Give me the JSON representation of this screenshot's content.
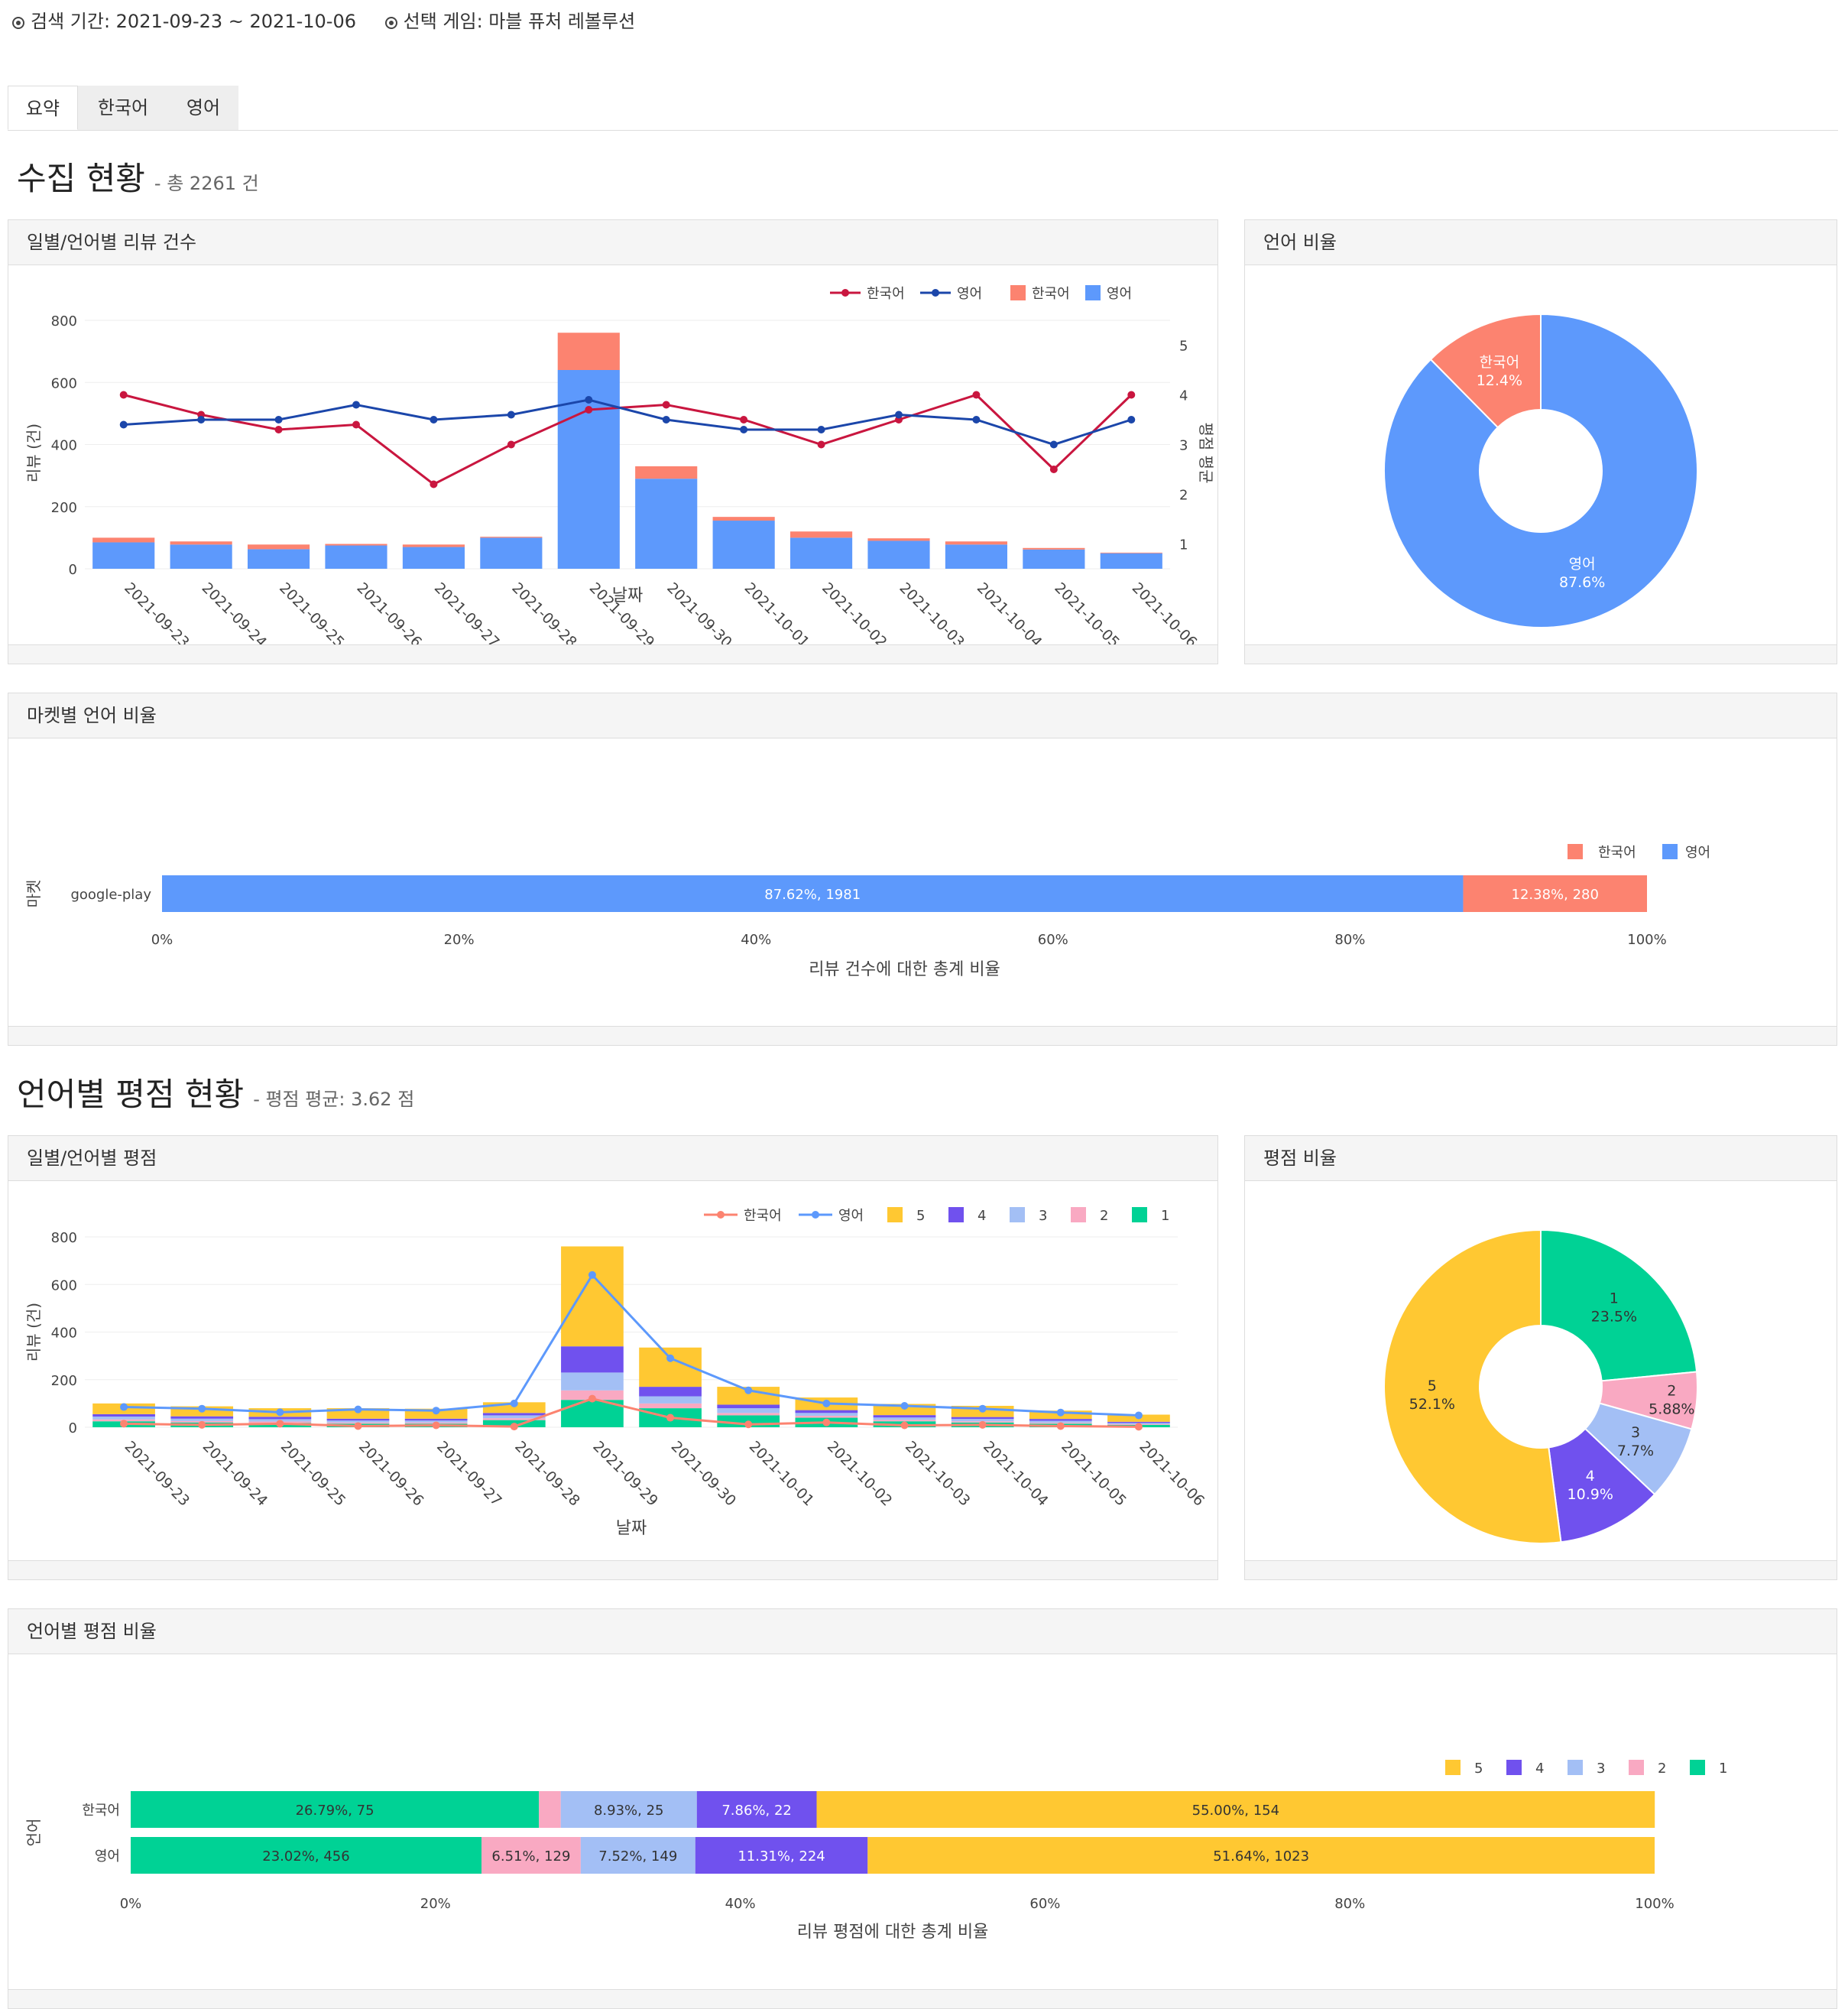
{
  "header": {
    "search_period": "검색 기간: 2021-09-23 ~ 2021-10-06",
    "selected_game": "선택 게임: 마블 퓨처 레볼루션"
  },
  "tabs": [
    {
      "label": "요약"
    },
    {
      "label": "한국어"
    },
    {
      "label": "영어"
    }
  ],
  "section1": {
    "title": "수집 현황",
    "subtitle": "- 총 2261 건"
  },
  "section2": {
    "title": "언어별 평점 현황",
    "subtitle": "- 평점 평균: 3.62 점"
  },
  "panels": {
    "daily_reviews": "일별/언어별 리뷰 건수",
    "language_ratio": "언어 비율",
    "market_ratio": "마켓별 언어 비율",
    "daily_ratings": "일별/언어별 평점",
    "rating_ratio": "평점 비율",
    "lang_rating_ratio": "언어별 평점 비율"
  },
  "colors": {
    "ko_bar": "#FC8370",
    "en_bar": "#5D99FC",
    "ko_line": "#C9163F",
    "en_line": "#1B46AA",
    "r5": "#FFC832",
    "r4": "#7051EE",
    "r3": "#A3BFF5",
    "r2": "#F9A9C2",
    "r1": "#00D295"
  },
  "chart_data": [
    {
      "type": "bar",
      "title": "",
      "xlabel": "날짜",
      "ylabel": "리뷰 (건)",
      "y2label": "평점 평균",
      "ylim": [
        0,
        800
      ],
      "y2lim": [
        0.5,
        5.5
      ],
      "legend_position": "top-right",
      "categories": [
        "2021-09-23",
        "2021-09-24",
        "2021-09-25",
        "2021-09-26",
        "2021-09-27",
        "2021-09-28",
        "2021-09-29",
        "2021-09-30",
        "2021-10-01",
        "2021-10-02",
        "2021-10-03",
        "2021-10-04",
        "2021-10-05",
        "2021-10-06"
      ],
      "series": [
        {
          "name": "한국어",
          "kind": "line",
          "axis": "y2",
          "values": [
            4.0,
            3.6,
            3.3,
            3.4,
            2.2,
            3.0,
            3.7,
            3.8,
            3.5,
            3.0,
            3.5,
            4.0,
            2.5,
            4.0
          ]
        },
        {
          "name": "영어",
          "kind": "line",
          "axis": "y2",
          "values": [
            3.4,
            3.5,
            3.5,
            3.8,
            3.5,
            3.6,
            3.9,
            3.5,
            3.3,
            3.3,
            3.6,
            3.5,
            3.0,
            3.5
          ]
        },
        {
          "name": "한국어",
          "kind": "bar",
          "values": [
            15,
            10,
            15,
            5,
            8,
            3,
            120,
            40,
            12,
            20,
            8,
            10,
            5,
            2
          ]
        },
        {
          "name": "영어",
          "kind": "bar",
          "values": [
            85,
            78,
            63,
            75,
            70,
            100,
            640,
            290,
            155,
            100,
            90,
            78,
            62,
            50
          ]
        }
      ],
      "yticks": [
        0,
        200,
        400,
        600,
        800
      ],
      "y2ticks": [
        1,
        2,
        3,
        4,
        5
      ]
    },
    {
      "type": "pie",
      "title": "",
      "labels": [
        "영어",
        "한국어"
      ],
      "values": [
        87.6,
        12.4
      ],
      "text": [
        "87.6%",
        "12.4%"
      ]
    },
    {
      "type": "bar",
      "orientation": "horizontal",
      "title": "",
      "xlabel": "리뷰 건수에 대한 총계 비율",
      "ylabel": "마켓",
      "legend_position": "top-right",
      "categories": [
        "google-play"
      ],
      "series": [
        {
          "name": "영어",
          "values": [
            87.62
          ],
          "labels": [
            "87.62%, 1981"
          ]
        },
        {
          "name": "한국어",
          "values": [
            12.38
          ],
          "labels": [
            "12.38%, 280"
          ]
        }
      ],
      "xticks": [
        "0%",
        "20%",
        "40%",
        "60%",
        "80%",
        "100%"
      ]
    },
    {
      "type": "bar",
      "stacked": true,
      "title": "",
      "xlabel": "날짜",
      "ylabel": "리뷰 (건)",
      "ylim": [
        0,
        800
      ],
      "legend_position": "top-right",
      "categories": [
        "2021-09-23",
        "2021-09-24",
        "2021-09-25",
        "2021-09-26",
        "2021-09-27",
        "2021-09-28",
        "2021-09-29",
        "2021-09-30",
        "2021-10-01",
        "2021-10-02",
        "2021-10-03",
        "2021-10-04",
        "2021-10-05",
        "2021-10-06"
      ],
      "series": [
        {
          "name": "1",
          "kind": "bar",
          "values": [
            25,
            20,
            18,
            15,
            15,
            30,
            115,
            80,
            50,
            40,
            25,
            20,
            15,
            10
          ]
        },
        {
          "name": "2",
          "kind": "bar",
          "values": [
            8,
            6,
            6,
            5,
            5,
            8,
            40,
            20,
            10,
            8,
            6,
            5,
            4,
            3
          ]
        },
        {
          "name": "3",
          "kind": "bar",
          "values": [
            12,
            10,
            10,
            8,
            8,
            12,
            75,
            30,
            20,
            12,
            10,
            10,
            8,
            5
          ]
        },
        {
          "name": "4",
          "kind": "bar",
          "values": [
            10,
            10,
            10,
            8,
            8,
            10,
            110,
            40,
            15,
            12,
            10,
            8,
            8,
            5
          ]
        },
        {
          "name": "5",
          "kind": "bar",
          "values": [
            45,
            42,
            36,
            44,
            42,
            45,
            420,
            165,
            75,
            53,
            47,
            47,
            35,
            30
          ]
        },
        {
          "name": "한국어",
          "kind": "line",
          "values": [
            15,
            10,
            15,
            5,
            8,
            3,
            120,
            40,
            12,
            20,
            8,
            10,
            5,
            2
          ]
        },
        {
          "name": "영어",
          "kind": "line",
          "values": [
            85,
            78,
            63,
            75,
            70,
            100,
            640,
            290,
            155,
            100,
            90,
            78,
            62,
            50
          ]
        }
      ],
      "yticks": [
        0,
        200,
        400,
        600,
        800
      ]
    },
    {
      "type": "pie",
      "title": "",
      "labels": [
        "1",
        "2",
        "3",
        "4",
        "5"
      ],
      "values": [
        23.5,
        5.88,
        7.7,
        10.9,
        52.1
      ],
      "text": [
        "23.5%",
        "5.88%",
        "7.7%",
        "10.9%",
        "52.1%"
      ]
    },
    {
      "type": "bar",
      "orientation": "horizontal",
      "stacked": true,
      "title": "",
      "xlabel": "리뷰 평점에 대한 총계 비율",
      "ylabel": "언어",
      "legend_position": "top-right",
      "categories": [
        "한국어",
        "영어"
      ],
      "series": [
        {
          "name": "1",
          "values": [
            26.79,
            23.02
          ],
          "labels": [
            "26.79%, 75",
            "23.02%, 456"
          ]
        },
        {
          "name": "2",
          "values": [
            1.43,
            6.51
          ],
          "labels": [
            "",
            "6.51%, 129"
          ]
        },
        {
          "name": "3",
          "values": [
            8.93,
            7.52
          ],
          "labels": [
            "8.93%, 25",
            "7.52%, 149"
          ]
        },
        {
          "name": "4",
          "values": [
            7.86,
            11.31
          ],
          "labels": [
            "7.86%, 22",
            "11.31%, 224"
          ]
        },
        {
          "name": "5",
          "values": [
            55.0,
            51.64
          ],
          "labels": [
            "55.00%, 154",
            "51.64%, 1023"
          ]
        }
      ],
      "xticks": [
        "0%",
        "20%",
        "40%",
        "60%",
        "80%",
        "100%"
      ]
    }
  ]
}
